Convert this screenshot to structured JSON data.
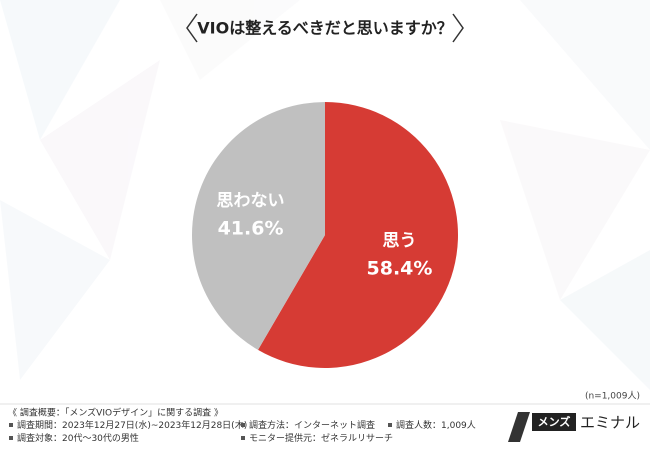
{
  "chart_data": {
    "type": "pie",
    "title": "VIOは整えるべきだと思いますか？",
    "categories": [
      "思う",
      "思わない"
    ],
    "values": [
      58.4,
      41.6
    ],
    "value_labels": [
      "58.4%",
      "41.6%"
    ],
    "colors": [
      "#d63b34",
      "#c0c0c0"
    ],
    "note": "(n=1,009人)"
  },
  "footer": {
    "heading": "《 調査概要：「メンズVIOデザイン」に関する調査 》",
    "items": [
      "調査期間：2023年12月27日(水)~2023年12月28日(木)",
      "調査対象：20代～30代の男性",
      "調査方法：インターネット調査",
      "モニター提供元：ゼネラルリサーチ",
      "調査人数：1,009人"
    ]
  },
  "logo": {
    "box": "メンズ",
    "text": "エミナル"
  }
}
